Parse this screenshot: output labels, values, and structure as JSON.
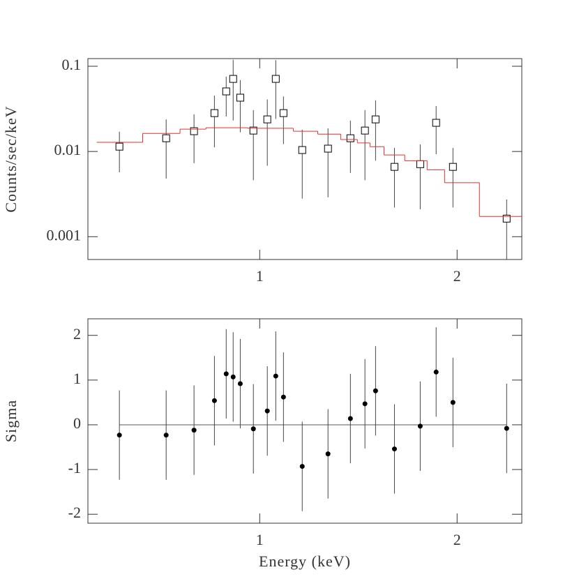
{
  "chart_data": [
    {
      "type": "scatter",
      "x_scale": "log",
      "y_scale": "log",
      "ylabel": "Counts/sec/keV",
      "xlim": [
        0.547,
        2.51
      ],
      "ylim": [
        0.00054,
        0.123
      ],
      "xticks": [
        1,
        2
      ],
      "yticks": [
        0.001,
        0.01,
        0.1
      ],
      "series": [
        {
          "marker": "open-square",
          "color": "#000000",
          "x": [
            0.611,
            0.72,
            0.794,
            0.853,
            0.889,
            0.911,
            0.934,
            0.978,
            1.027,
            1.058,
            1.087,
            1.161,
            1.271,
            1.375,
            1.447,
            1.502,
            1.605,
            1.757,
            1.858,
            1.971,
            2.38
          ],
          "values": [
            0.0114,
            0.0143,
            0.0173,
            0.0282,
            0.0507,
            0.0711,
            0.0428,
            0.0176,
            0.0238,
            0.0711,
            0.0282,
            0.0104,
            0.0108,
            0.0143,
            0.0176,
            0.0238,
            0.0066,
            0.0071,
            0.0217,
            0.0066,
            0.00163
          ],
          "errors": [
            0.0057,
            0.0095,
            0.01,
            0.017,
            0.025,
            0.048,
            0.026,
            0.013,
            0.017,
            0.047,
            0.016,
            0.0076,
            0.0079,
            0.0087,
            0.013,
            0.016,
            0.0044,
            0.005,
            0.0124,
            0.0044,
            0.0011
          ]
        },
        {
          "type": "step",
          "color": "#e03030",
          "bin_edges": [
            0.564,
            0.663,
            0.756,
            0.828,
            0.959,
            1.125,
            1.226,
            1.329,
            1.409,
            1.473,
            1.547,
            1.664,
            1.8,
            1.914,
            2.163,
            2.51
          ],
          "values": [
            0.0128,
            0.0163,
            0.0183,
            0.019,
            0.0187,
            0.0173,
            0.016,
            0.0138,
            0.0126,
            0.0114,
            0.0091,
            0.0078,
            0.0061,
            0.0043,
            0.00173
          ]
        }
      ]
    },
    {
      "type": "scatter",
      "x_scale": "log",
      "ylabel": "Sigma",
      "xlabel": "Energy (keV)",
      "xlim": [
        0.547,
        2.51
      ],
      "ylim": [
        -2.2,
        2.37
      ],
      "xticks": [
        1,
        2
      ],
      "yticks": [
        -2,
        -1,
        0,
        1,
        2
      ],
      "hline": 0,
      "series": [
        {
          "marker": "filled-circle",
          "color": "#000000",
          "x": [
            0.611,
            0.72,
            0.794,
            0.853,
            0.889,
            0.911,
            0.934,
            0.978,
            1.027,
            1.058,
            1.087,
            1.161,
            1.271,
            1.375,
            1.447,
            1.502,
            1.605,
            1.757,
            1.858,
            1.971,
            2.38
          ],
          "values": [
            -0.23,
            -0.23,
            -0.12,
            0.54,
            1.14,
            1.07,
            0.92,
            -0.09,
            0.31,
            1.09,
            0.62,
            -0.93,
            -0.65,
            0.14,
            0.47,
            0.76,
            -0.54,
            -0.03,
            1.18,
            0.5,
            -0.08
          ],
          "errors": [
            1,
            1,
            1,
            1,
            1,
            1,
            1,
            1,
            1,
            1,
            1,
            1,
            1,
            1,
            1,
            1,
            1,
            1,
            1,
            1,
            1
          ]
        }
      ]
    }
  ]
}
